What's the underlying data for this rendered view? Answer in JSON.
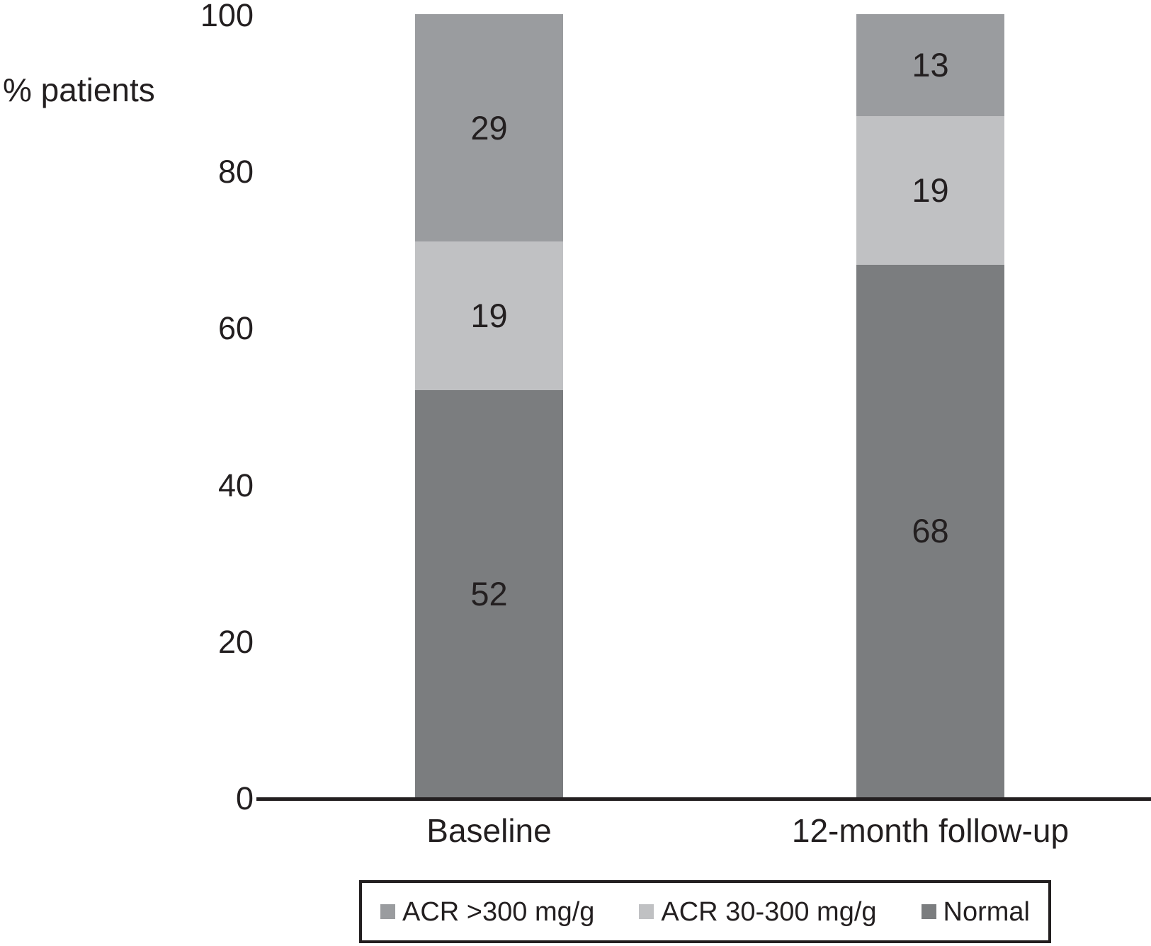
{
  "chart_data": {
    "type": "bar",
    "stacked": true,
    "title": "",
    "ylabel": "% patients",
    "xlabel": "",
    "categories": [
      "Baseline",
      "12-month follow-up"
    ],
    "series_order": "top-to-bottom",
    "series": [
      {
        "name": "ACR >300 mg/g",
        "values": [
          29,
          13
        ],
        "color": "#9a9c9f"
      },
      {
        "name": "ACR 30-300 mg/g",
        "values": [
          19,
          19
        ],
        "color": "#c0c1c3"
      },
      {
        "name": "Normal",
        "values": [
          52,
          68
        ],
        "color": "#7b7d7f"
      }
    ],
    "ylim": [
      0,
      100
    ],
    "yticks": [
      0,
      20,
      40,
      60,
      80,
      100
    ],
    "grid": false,
    "legend_position": "bottom",
    "legend_entries": [
      "ACR >300 mg/g",
      "ACR 30-300 mg/g",
      "Normal"
    ],
    "text_color": "#231f20",
    "axis_color": "#231f20",
    "background_color": "#ffffff"
  }
}
